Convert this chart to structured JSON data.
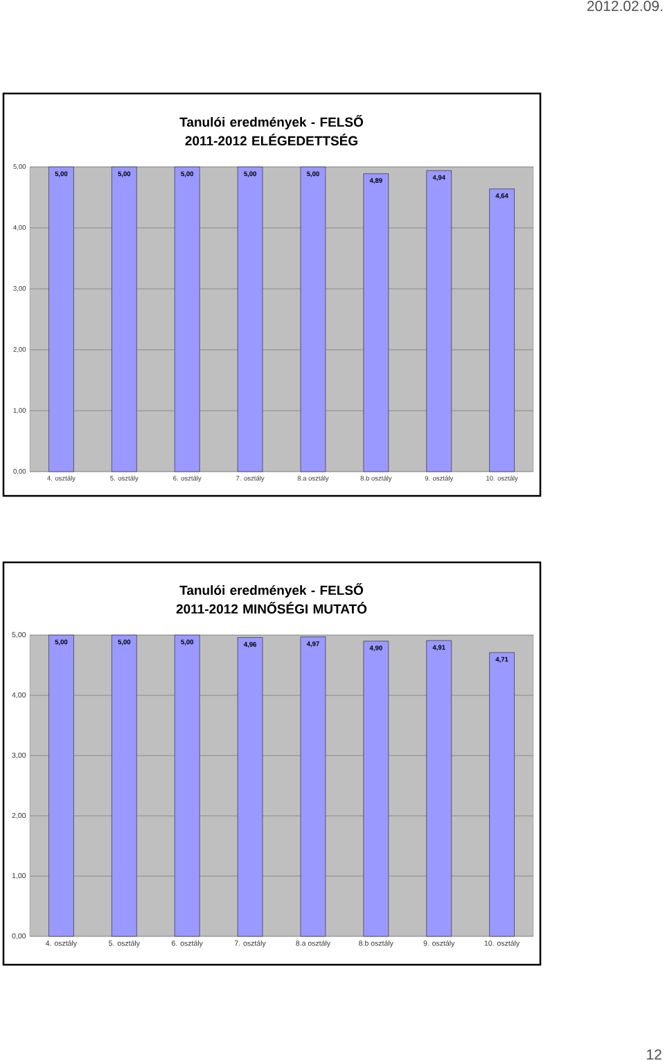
{
  "chart_data": [
    {
      "type": "bar",
      "title": "Tanulói eredmények - FELSŐ 2011-2012 ELÉGEDETTSÉG",
      "categories": [
        "4. osztály",
        "5. osztály",
        "6. osztály",
        "7. osztály",
        "8.a osztály",
        "8.b osztály",
        "9. osztály",
        "10. osztály"
      ],
      "values": [
        5.0,
        5.0,
        5.0,
        5.0,
        5.0,
        4.89,
        4.94,
        4.64
      ],
      "value_labels": [
        "5,00",
        "5,00",
        "5,00",
        "5,00",
        "5,00",
        "4,89",
        "4,94",
        "4,64"
      ],
      "color": "#9999ff",
      "ylim": [
        0,
        5
      ],
      "yticks": [
        {
          "value": 0,
          "label": "0,00"
        },
        {
          "value": 1,
          "label": "1,00"
        },
        {
          "value": 2,
          "label": "2,00"
        },
        {
          "value": 3,
          "label": "3,00"
        },
        {
          "value": 4,
          "label": "4,00"
        },
        {
          "value": 5,
          "label": "5,00"
        }
      ],
      "grid": "y",
      "annotations": [
        "2012.02.09."
      ]
    },
    {
      "type": "bar",
      "title": "Tanulói eredmények - FELSŐ 2011-2012 MINŐSÉGI MUTATÓ",
      "categories": [
        "4. osztály",
        "5. osztály",
        "6. osztály",
        "7. osztály",
        "8.a osztály",
        "8.b osztály",
        "9. osztály",
        "10. osztály"
      ],
      "values": [
        5.0,
        5.0,
        5.0,
        4.96,
        4.97,
        4.9,
        4.91,
        4.71
      ],
      "value_labels": [
        "5,00",
        "5,00",
        "5,00",
        "4,96",
        "4,97",
        "4,90",
        "4,91",
        "4,71"
      ],
      "color": "#9999ff",
      "ylim": [
        0,
        5
      ],
      "yticks": [
        {
          "value": 0,
          "label": "0,00"
        },
        {
          "value": 1,
          "label": "1,00"
        },
        {
          "value": 2,
          "label": "2,00"
        },
        {
          "value": 3,
          "label": "3,00"
        },
        {
          "value": 4,
          "label": "4,00"
        },
        {
          "value": 5,
          "label": "5,00"
        }
      ],
      "grid": "y",
      "annotations": [
        "12"
      ]
    }
  ]
}
